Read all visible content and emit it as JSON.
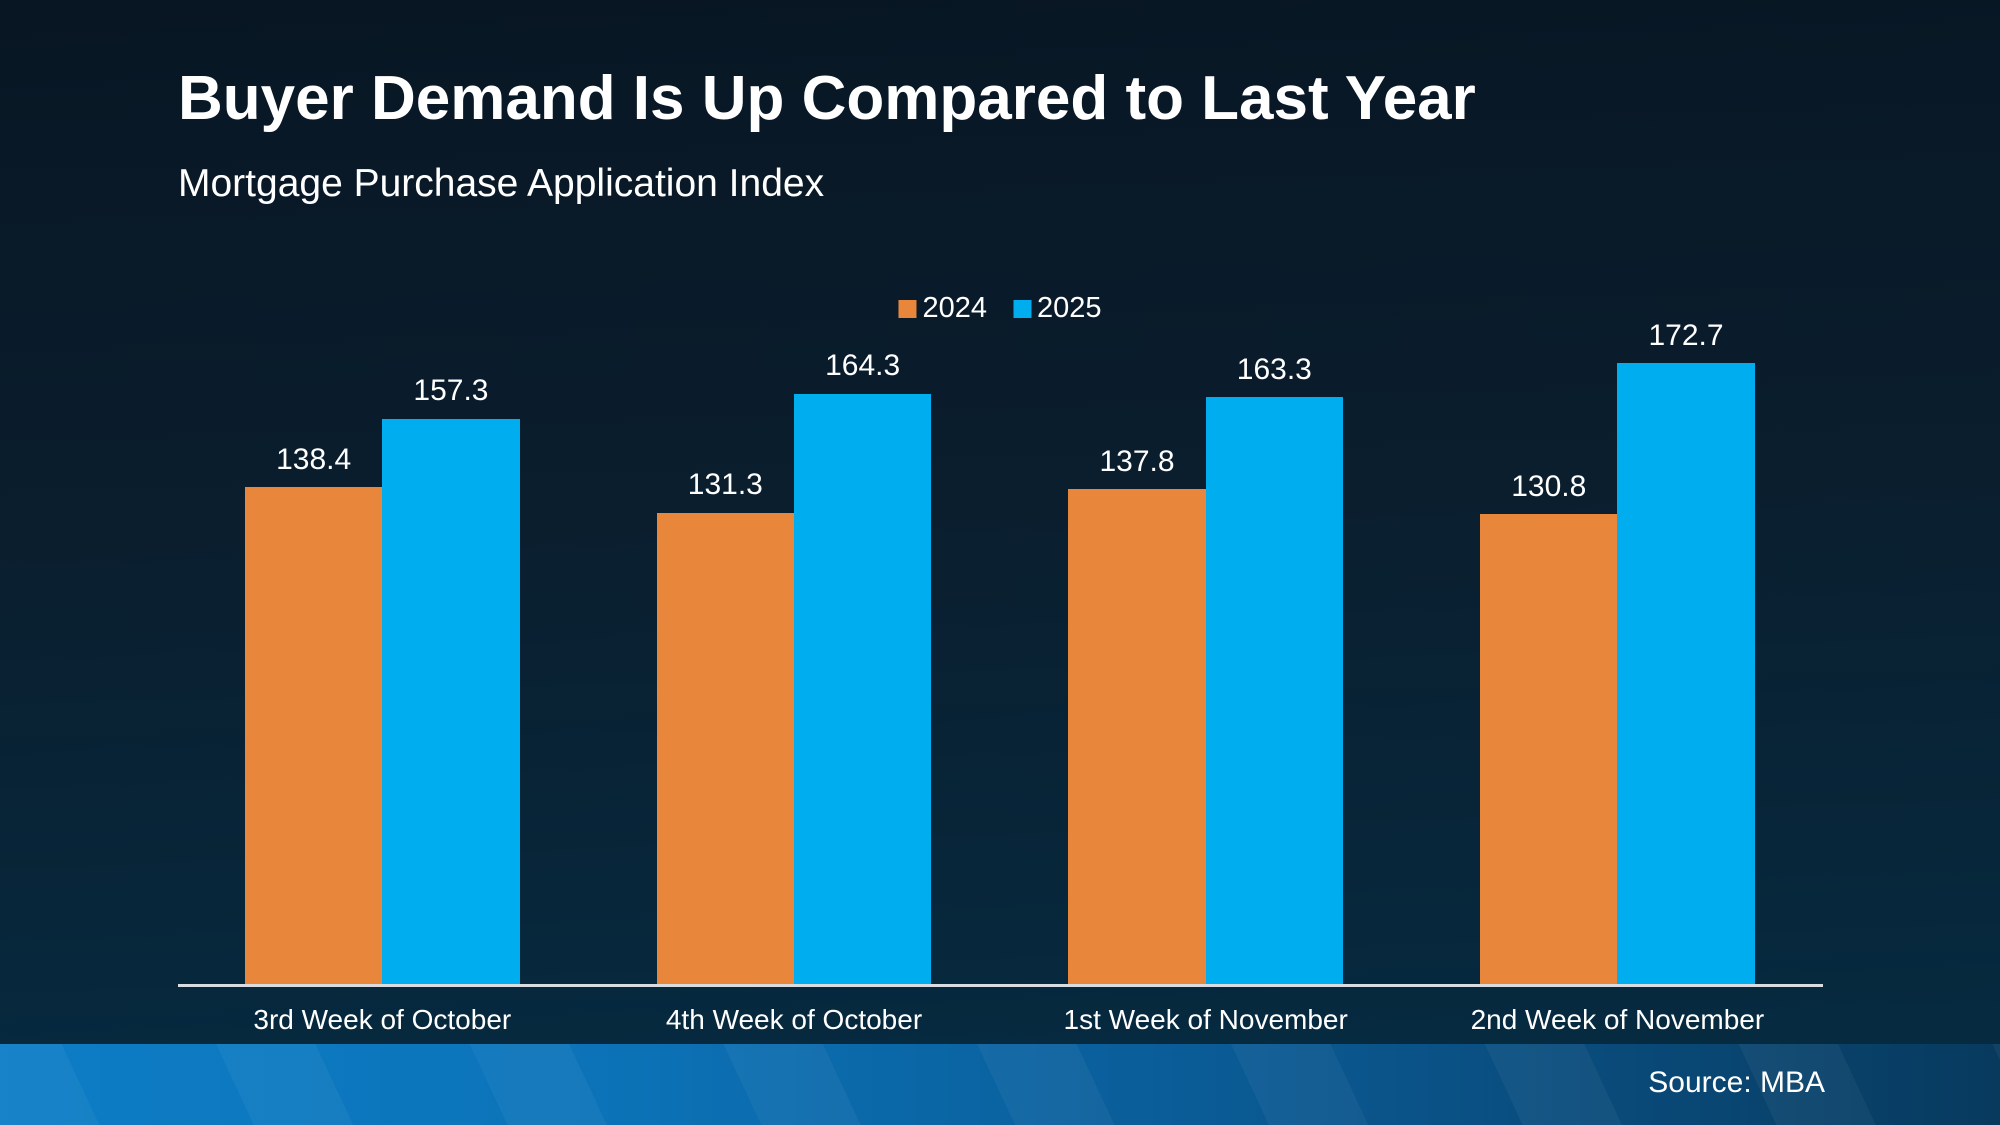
{
  "header": {
    "title": "Buyer Demand Is Up Compared to Last Year",
    "subtitle": "Mortgage Purchase Application Index"
  },
  "footer": {
    "source": "Source: MBA"
  },
  "colors": {
    "background_top": "#081623",
    "background_bottom": "#052a41",
    "series_2024": "#E8873B",
    "series_2025": "#00ADEE",
    "axis_line": "#d9dde1",
    "text": "#ffffff",
    "footer_gradient_left": "#0d7dc6",
    "footer_gradient_right": "#083a5e"
  },
  "chart_data": {
    "type": "bar",
    "title": "Buyer Demand Is Up Compared to Last Year",
    "subtitle": "Mortgage Purchase Application Index",
    "categories": [
      "3rd Week of October",
      "4th Week of October",
      "1st Week of November",
      "2nd Week of November"
    ],
    "series": [
      {
        "name": "2024",
        "color": "#E8873B",
        "values": [
          138.4,
          131.3,
          137.8,
          130.8
        ]
      },
      {
        "name": "2025",
        "color": "#00ADEE",
        "values": [
          157.3,
          164.3,
          163.3,
          172.7
        ]
      }
    ],
    "ylim": [
      0,
      190
    ],
    "grid": false,
    "y_axis_visible": false,
    "legend_position": "top-center",
    "value_labels": true
  }
}
